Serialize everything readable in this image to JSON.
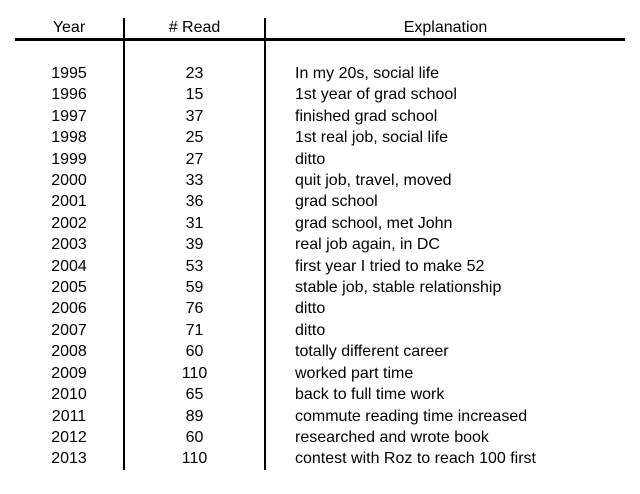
{
  "chart_data": {
    "type": "table",
    "columns": [
      "Year",
      "# Read",
      "Explanation"
    ],
    "rows": [
      [
        "1995",
        "23",
        "In my 20s, social life"
      ],
      [
        "1996",
        "15",
        "1st year of grad school"
      ],
      [
        "1997",
        "37",
        "finished grad school"
      ],
      [
        "1998",
        "25",
        "1st real job, social life"
      ],
      [
        "1999",
        "27",
        "ditto"
      ],
      [
        "2000",
        "33",
        "quit job, travel, moved"
      ],
      [
        "2001",
        "36",
        "grad school"
      ],
      [
        "2002",
        "31",
        "grad school, met John"
      ],
      [
        "2003",
        "39",
        "real job again, in DC"
      ],
      [
        "2004",
        "53",
        "first year I tried to make 52"
      ],
      [
        "2005",
        "59",
        "stable job, stable relationship"
      ],
      [
        "2006",
        "76",
        "ditto"
      ],
      [
        "2007",
        "71",
        "ditto"
      ],
      [
        "2008",
        "60",
        "totally different career"
      ],
      [
        "2009",
        "110",
        "worked part time"
      ],
      [
        "2010",
        "65",
        "back to full time work"
      ],
      [
        "2011",
        "89",
        "commute reading time increased"
      ],
      [
        "2012",
        "60",
        "researched and wrote book"
      ],
      [
        "2013",
        "110",
        "contest with Roz to reach 100 first"
      ]
    ],
    "layout": {
      "header_rule": "thick-bottom-border",
      "column_separators": "vertical-lines",
      "outer_border": "none",
      "grid": "off"
    }
  },
  "style": {
    "text_color": "#000000",
    "line_color": "#000000",
    "background": "#ffffff"
  }
}
